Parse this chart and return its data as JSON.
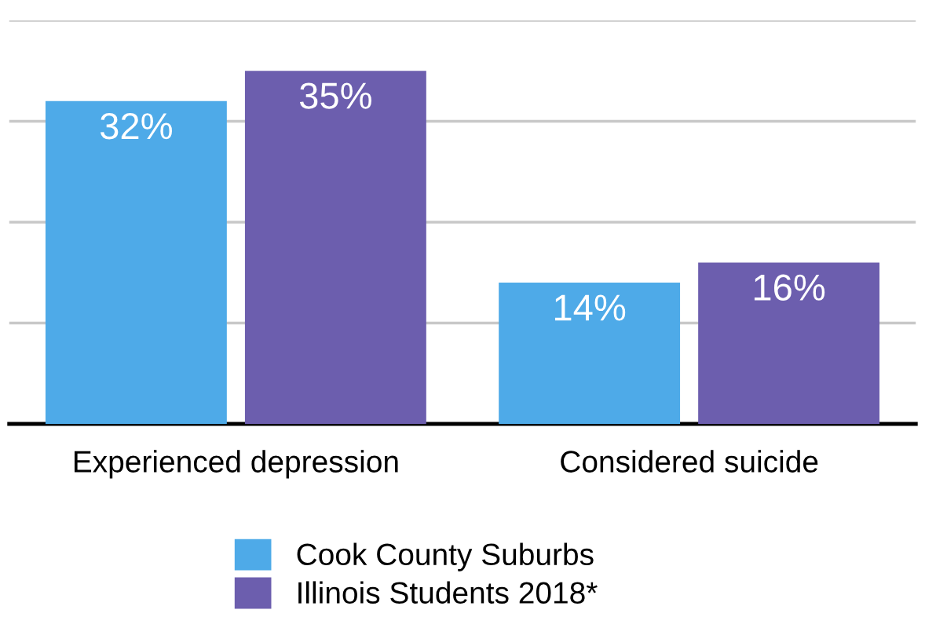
{
  "chart_data": {
    "type": "bar",
    "categories": [
      "Experienced depression",
      "Considered suicide"
    ],
    "series": [
      {
        "name": "Cook County Suburbs",
        "color": "#4eaae8",
        "values": [
          32,
          14
        ],
        "value_labels": [
          "32%",
          "14%"
        ]
      },
      {
        "name": "Illinois Students 2018*",
        "color": "#6c5eae",
        "values": [
          35,
          16
        ],
        "value_labels": [
          "35%",
          "16%"
        ]
      }
    ],
    "ylim": [
      0,
      40
    ],
    "yticks": [
      {
        "value": 10,
        "label": null
      },
      {
        "value": 20,
        "label": null
      },
      {
        "value": 30,
        "label": null
      },
      {
        "value": 40,
        "label": null
      }
    ],
    "tick_labels": "x",
    "grid": "y",
    "legend": "bottom"
  }
}
